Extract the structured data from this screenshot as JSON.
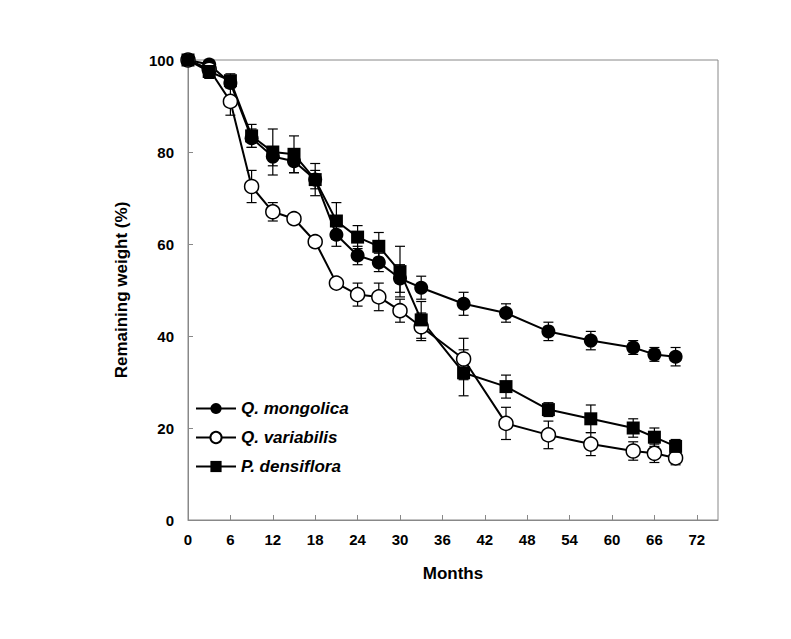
{
  "chart_data": {
    "type": "line",
    "x_label": "Months",
    "y_label": "Remaining weight (%)",
    "x": [
      0,
      3,
      6,
      9,
      12,
      15,
      18,
      21,
      24,
      27,
      30,
      33,
      39,
      45,
      51,
      57,
      63,
      66,
      69
    ],
    "xlim": [
      0,
      75
    ],
    "xticks": [
      0,
      6,
      12,
      18,
      24,
      30,
      36,
      42,
      48,
      54,
      60,
      66,
      72
    ],
    "ylim": [
      0,
      100
    ],
    "yticks": [
      0,
      20,
      40,
      60,
      80,
      100
    ],
    "grid": false,
    "legend": "lower left",
    "series": [
      {
        "name": "Q. mongolica",
        "color": "#000000",
        "marker": "circle",
        "line_style": "solid",
        "values": [
          100,
          99,
          95,
          83,
          79,
          78,
          74,
          62,
          57.5,
          56,
          52.5,
          50.5,
          47,
          45,
          41,
          39,
          37.5,
          36,
          35.5
        ],
        "errors": [
          0,
          1,
          1,
          2,
          2,
          2.5,
          2,
          2.5,
          2,
          2,
          3,
          2.5,
          2.5,
          2,
          2,
          2,
          1.5,
          1.5,
          2
        ]
      },
      {
        "name": "Q. variabilis",
        "color": "#000000",
        "marker": "open_circle",
        "line_style": "solid",
        "values": [
          100,
          98,
          91,
          72.5,
          67,
          65.5,
          60.5,
          51.5,
          49,
          48.5,
          45.5,
          42,
          35,
          21,
          18.5,
          16.5,
          15,
          14.5,
          13.5
        ],
        "errors": [
          0,
          1,
          3,
          3.5,
          2,
          1,
          1,
          1,
          2.5,
          3,
          2.5,
          3,
          4.5,
          3.5,
          3,
          2.5,
          2,
          2,
          1.5
        ]
      },
      {
        "name": "P. densiflora",
        "color": "#000000",
        "marker": "square",
        "line_style": "solid",
        "values": [
          100,
          97.5,
          95.5,
          83.5,
          80,
          79.5,
          74,
          65,
          61.5,
          59.5,
          54,
          43.5,
          32,
          29,
          24,
          22,
          20,
          18,
          16
        ],
        "errors": [
          0,
          1.5,
          1.5,
          2.5,
          5,
          4,
          3.5,
          4,
          2.5,
          3,
          5.5,
          4,
          5,
          2.5,
          1.5,
          3,
          2,
          2,
          1.5
        ]
      }
    ]
  }
}
